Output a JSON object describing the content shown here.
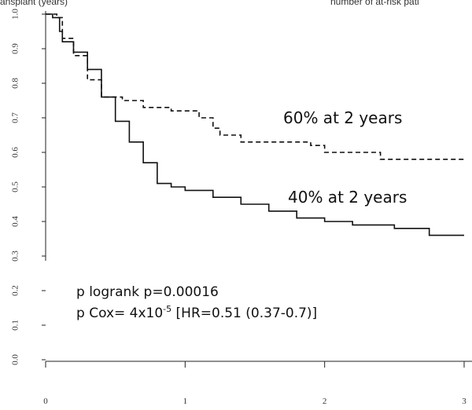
{
  "chart_data": {
    "type": "line",
    "step": true,
    "top_left_text": "ansplant (years)",
    "top_right_text": "number of at-risk pati",
    "xlim": [
      0,
      3
    ],
    "xticks": [
      0,
      1,
      2,
      3
    ],
    "ylim": [
      0,
      1
    ],
    "yticks": [
      {
        "value": 0,
        "label": "0.0"
      },
      0.1,
      0.2,
      0.3,
      0.4,
      0.5,
      0.6,
      0.7,
      0.8,
      0.9,
      {
        "value": 1,
        "label": "1.0"
      }
    ],
    "series": [
      {
        "color": "#111111",
        "line_style": "solid",
        "x": [
          0,
          0.05,
          0.1,
          0.12,
          0.2,
          0.3,
          0.4,
          0.5,
          0.6,
          0.7,
          0.8,
          0.9,
          1.0,
          1.2,
          1.4,
          1.6,
          1.8,
          2.0,
          2.2,
          2.5,
          2.75,
          3
        ],
        "values": [
          1,
          0.99,
          0.95,
          0.92,
          0.89,
          0.84,
          0.76,
          0.69,
          0.63,
          0.57,
          0.51,
          0.5,
          0.49,
          0.47,
          0.45,
          0.43,
          0.41,
          0.4,
          0.39,
          0.38,
          0.36,
          0.36
        ]
      },
      {
        "color": "#111111",
        "line_style": "dashed",
        "x": [
          0,
          0.08,
          0.12,
          0.2,
          0.3,
          0.4,
          0.55,
          0.7,
          0.9,
          1.1,
          1.2,
          1.25,
          1.4,
          1.9,
          2.0,
          2.4,
          3
        ],
        "values": [
          1,
          0.99,
          0.93,
          0.88,
          0.81,
          0.76,
          0.75,
          0.73,
          0.72,
          0.7,
          0.67,
          0.65,
          0.63,
          0.62,
          0.6,
          0.58,
          0.58
        ]
      }
    ],
    "annotations": [
      "60% at 2 years",
      "40% at 2 years"
    ],
    "legend_lines": [
      "p logrank p=0.00016",
      "p Cox= 4x10",
      "-5",
      " [HR=0.51 (0.37-0.7)]"
    ]
  }
}
